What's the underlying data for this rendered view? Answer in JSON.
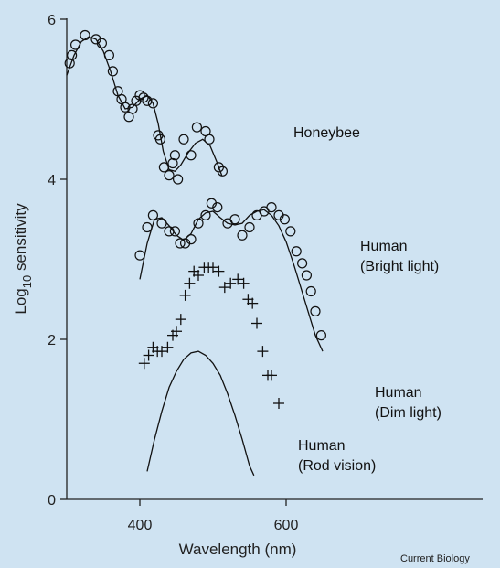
{
  "chart_data": {
    "type": "scatter",
    "title": "",
    "xlabel": "Wavelength (nm)",
    "ylabel_main": "Log",
    "ylabel_sub": "10",
    "ylabel_rest": " sensitivity",
    "xlim": [
      300,
      700
    ],
    "ylim": [
      0,
      6
    ],
    "xticks": [
      400,
      600
    ],
    "yticks": [
      0,
      2,
      4,
      6
    ],
    "grid": false,
    "credit": "Current Biology",
    "series": [
      {
        "name": "Honeybee",
        "label_lines": [
          "Honeybee"
        ],
        "marker": "circle",
        "points": [
          [
            304,
            5.45
          ],
          [
            307,
            5.55
          ],
          [
            312,
            5.68
          ],
          [
            325,
            5.8
          ],
          [
            340,
            5.75
          ],
          [
            348,
            5.7
          ],
          [
            358,
            5.55
          ],
          [
            363,
            5.35
          ],
          [
            370,
            5.1
          ],
          [
            375,
            5.0
          ],
          [
            380,
            4.9
          ],
          [
            385,
            4.78
          ],
          [
            390,
            4.88
          ],
          [
            395,
            4.98
          ],
          [
            400,
            5.05
          ],
          [
            405,
            5.02
          ],
          [
            410,
            4.98
          ],
          [
            418,
            4.95
          ],
          [
            425,
            4.55
          ],
          [
            428,
            4.5
          ],
          [
            433,
            4.15
          ],
          [
            440,
            4.05
          ],
          [
            445,
            4.2
          ],
          [
            448,
            4.3
          ],
          [
            452,
            4.0
          ],
          [
            460,
            4.5
          ],
          [
            470,
            4.3
          ],
          [
            478,
            4.65
          ],
          [
            490,
            4.6
          ],
          [
            495,
            4.5
          ],
          [
            508,
            4.15
          ],
          [
            513,
            4.1
          ]
        ],
        "curve": [
          [
            300,
            5.3
          ],
          [
            310,
            5.55
          ],
          [
            320,
            5.72
          ],
          [
            330,
            5.78
          ],
          [
            340,
            5.75
          ],
          [
            350,
            5.6
          ],
          [
            360,
            5.35
          ],
          [
            370,
            5.05
          ],
          [
            380,
            4.88
          ],
          [
            390,
            4.9
          ],
          [
            400,
            5.0
          ],
          [
            410,
            5.05
          ],
          [
            418,
            4.95
          ],
          [
            425,
            4.7
          ],
          [
            432,
            4.35
          ],
          [
            440,
            4.12
          ],
          [
            448,
            4.1
          ],
          [
            456,
            4.18
          ],
          [
            466,
            4.33
          ],
          [
            476,
            4.45
          ],
          [
            486,
            4.5
          ],
          [
            496,
            4.42
          ],
          [
            506,
            4.2
          ],
          [
            512,
            4.05
          ]
        ]
      },
      {
        "name": "Human (Bright light)",
        "label_lines": [
          "Human",
          "(Bright light)"
        ],
        "marker": "circle",
        "points": [
          [
            400,
            3.05
          ],
          [
            410,
            3.4
          ],
          [
            418,
            3.55
          ],
          [
            430,
            3.45
          ],
          [
            440,
            3.35
          ],
          [
            448,
            3.35
          ],
          [
            455,
            3.2
          ],
          [
            462,
            3.2
          ],
          [
            470,
            3.25
          ],
          [
            480,
            3.45
          ],
          [
            490,
            3.55
          ],
          [
            498,
            3.7
          ],
          [
            506,
            3.65
          ],
          [
            520,
            3.45
          ],
          [
            530,
            3.5
          ],
          [
            540,
            3.3
          ],
          [
            550,
            3.4
          ],
          [
            560,
            3.55
          ],
          [
            570,
            3.6
          ],
          [
            580,
            3.65
          ],
          [
            590,
            3.55
          ],
          [
            598,
            3.5
          ],
          [
            606,
            3.35
          ],
          [
            614,
            3.1
          ],
          [
            622,
            2.95
          ],
          [
            628,
            2.8
          ],
          [
            634,
            2.6
          ],
          [
            640,
            2.35
          ],
          [
            648,
            2.05
          ]
        ],
        "curve": [
          [
            400,
            2.75
          ],
          [
            410,
            3.2
          ],
          [
            420,
            3.5
          ],
          [
            430,
            3.52
          ],
          [
            440,
            3.42
          ],
          [
            450,
            3.3
          ],
          [
            460,
            3.24
          ],
          [
            470,
            3.32
          ],
          [
            480,
            3.5
          ],
          [
            490,
            3.58
          ],
          [
            500,
            3.6
          ],
          [
            510,
            3.52
          ],
          [
            520,
            3.45
          ],
          [
            530,
            3.43
          ],
          [
            540,
            3.45
          ],
          [
            550,
            3.55
          ],
          [
            560,
            3.6
          ],
          [
            570,
            3.62
          ],
          [
            580,
            3.55
          ],
          [
            590,
            3.42
          ],
          [
            600,
            3.22
          ],
          [
            610,
            2.95
          ],
          [
            620,
            2.65
          ],
          [
            630,
            2.35
          ],
          [
            640,
            2.05
          ],
          [
            650,
            1.85
          ]
        ]
      },
      {
        "name": "Human (Dim light)",
        "label_lines": [
          "Human",
          "(Dim light)"
        ],
        "marker": "plus",
        "points": [
          [
            406,
            1.7
          ],
          [
            412,
            1.8
          ],
          [
            418,
            1.9
          ],
          [
            424,
            1.85
          ],
          [
            430,
            1.85
          ],
          [
            438,
            1.9
          ],
          [
            445,
            2.05
          ],
          [
            450,
            2.1
          ],
          [
            456,
            2.25
          ],
          [
            462,
            2.55
          ],
          [
            468,
            2.7
          ],
          [
            474,
            2.85
          ],
          [
            480,
            2.8
          ],
          [
            488,
            2.9
          ],
          [
            494,
            2.9
          ],
          [
            500,
            2.9
          ],
          [
            508,
            2.85
          ],
          [
            516,
            2.65
          ],
          [
            524,
            2.7
          ],
          [
            534,
            2.75
          ],
          [
            542,
            2.7
          ],
          [
            548,
            2.5
          ],
          [
            554,
            2.45
          ],
          [
            560,
            2.2
          ],
          [
            568,
            1.85
          ],
          [
            575,
            1.55
          ],
          [
            580,
            1.55
          ],
          [
            590,
            1.2
          ]
        ]
      },
      {
        "name": "Human (Rod vision)",
        "label_lines": [
          "Human",
          "(Rod vision)"
        ],
        "marker": "none",
        "curve": [
          [
            410,
            0.35
          ],
          [
            420,
            0.75
          ],
          [
            430,
            1.1
          ],
          [
            440,
            1.4
          ],
          [
            450,
            1.6
          ],
          [
            460,
            1.75
          ],
          [
            470,
            1.83
          ],
          [
            480,
            1.85
          ],
          [
            490,
            1.8
          ],
          [
            500,
            1.7
          ],
          [
            510,
            1.55
          ],
          [
            520,
            1.32
          ],
          [
            530,
            1.05
          ],
          [
            540,
            0.75
          ],
          [
            550,
            0.42
          ],
          [
            556,
            0.3
          ]
        ]
      }
    ]
  }
}
